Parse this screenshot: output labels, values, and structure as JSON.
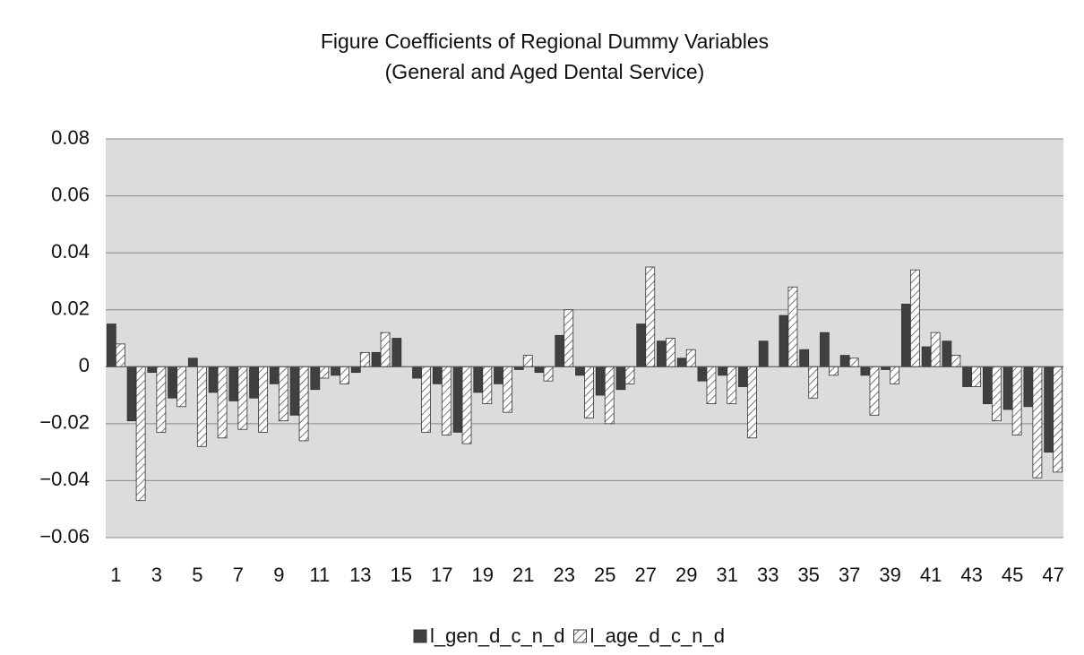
{
  "chart_data": {
    "type": "bar",
    "title": "Figure  Coefficients of Regional Dummy Variables",
    "subtitle": "(General and Aged Dental Service)",
    "categories": [
      "1",
      null,
      "3",
      null,
      "5",
      null,
      "7",
      null,
      "9",
      null,
      "11",
      null,
      "13",
      null,
      "15",
      null,
      "17",
      null,
      "19",
      null,
      "21",
      null,
      "23",
      null,
      "25",
      null,
      "27",
      null,
      "29",
      null,
      "31",
      null,
      "33",
      null,
      "35",
      null,
      "37",
      null,
      "39",
      null,
      "41",
      null,
      "43",
      null,
      "45",
      null,
      "47"
    ],
    "series": [
      {
        "name": "l_gen_d_c_n_d",
        "color": "#404040",
        "values": [
          0.015,
          -0.019,
          -0.002,
          -0.011,
          0.003,
          -0.009,
          -0.012,
          -0.011,
          -0.006,
          -0.017,
          -0.008,
          -0.003,
          -0.002,
          0.005,
          0.01,
          -0.004,
          -0.006,
          -0.023,
          -0.009,
          -0.006,
          -0.001,
          -0.002,
          0.011,
          -0.003,
          -0.01,
          -0.008,
          0.015,
          0.009,
          0.003,
          -0.005,
          -0.003,
          -0.007,
          0.009,
          0.018,
          0.006,
          0.012,
          0.004,
          -0.003,
          -0.001,
          0.022,
          0.007,
          0.009,
          -0.007,
          -0.013,
          -0.015,
          -0.014,
          -0.03
        ]
      },
      {
        "name": "l_age_d_c_n_d",
        "color": "#555555",
        "values": [
          0.008,
          -0.047,
          -0.023,
          -0.014,
          -0.028,
          -0.025,
          -0.022,
          -0.023,
          -0.019,
          -0.026,
          -0.004,
          -0.006,
          0.005,
          0.012,
          0,
          -0.023,
          -0.024,
          -0.027,
          -0.013,
          -0.016,
          0.004,
          -0.005,
          0.02,
          -0.018,
          -0.02,
          -0.006,
          0.035,
          0.01,
          0.006,
          -0.013,
          -0.013,
          -0.025,
          0,
          0.028,
          -0.011,
          -0.003,
          0.003,
          -0.017,
          -0.006,
          0.034,
          0.012,
          0.004,
          -0.007,
          -0.019,
          -0.024,
          -0.039,
          -0.037
        ]
      }
    ],
    "ylim": [
      -0.06,
      0.08
    ],
    "yticks": [
      {
        "value": -0.06,
        "label": "−0.06"
      },
      {
        "value": -0.04,
        "label": "−0.04"
      },
      {
        "value": -0.02,
        "label": "−0.02"
      },
      0,
      0.02,
      0.04,
      0.06,
      0.08
    ],
    "grid": true,
    "legend": "bottom"
  }
}
